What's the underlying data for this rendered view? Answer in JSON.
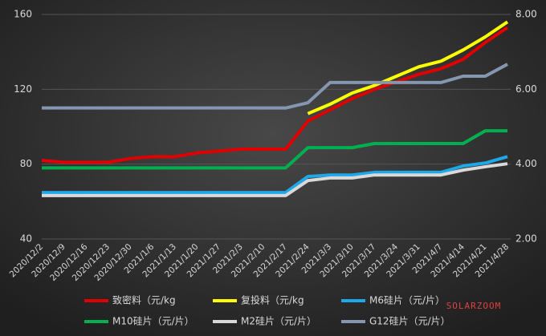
{
  "chart_data": {
    "type": "line",
    "categories": [
      "2020/12/2",
      "2020/12/9",
      "2020/12/16",
      "2020/12/23",
      "2020/12/30",
      "2021/1/6",
      "2021/1/13",
      "2021/1/20",
      "2021/1/27",
      "2021/2/3",
      "2021/2/10",
      "2021/2/17",
      "2021/2/24",
      "2021/3/3",
      "2021/3/10",
      "2021/3/17",
      "2021/3/24",
      "2021/3/31",
      "2021/4/7",
      "2021/4/14",
      "2021/4/21",
      "2021/4/28"
    ],
    "ylim": [
      40,
      160
    ],
    "yticks": [
      40,
      80,
      120,
      160
    ],
    "y2lim": [
      2,
      8
    ],
    "y2ticks": [
      {
        "value": 2,
        "label": "2.00"
      },
      {
        "value": 4,
        "label": "4.00"
      },
      {
        "value": 6,
        "label": "6.00"
      },
      {
        "value": 8,
        "label": "8.00"
      }
    ],
    "grid": true,
    "legend": "bottom",
    "watermark": "SOLARZOOM",
    "series": [
      {
        "name": "致密料（元/kg",
        "color": "#e00000",
        "values": [
          82,
          81,
          81,
          81,
          83,
          84,
          84,
          86,
          87,
          88,
          88,
          88,
          103,
          109,
          115,
          120,
          124,
          128,
          131,
          136,
          145,
          153
        ]
      },
      {
        "name": "复投料（元/kg",
        "color": "#ffff00",
        "values": [
          null,
          null,
          null,
          null,
          null,
          null,
          null,
          null,
          null,
          null,
          null,
          null,
          107,
          112,
          118,
          122,
          127,
          132,
          135,
          141,
          148,
          156
        ]
      },
      {
        "name": "M6硅片（元/片）",
        "color": "#1ea8e8",
        "axis": "y2",
        "values": [
          3.24,
          3.24,
          3.24,
          3.24,
          3.24,
          3.24,
          3.24,
          3.24,
          3.24,
          3.24,
          3.24,
          3.24,
          3.67,
          3.71,
          3.71,
          3.78,
          3.78,
          3.78,
          3.78,
          3.95,
          4.03,
          4.2
        ]
      },
      {
        "name": "M10硅片（元/片）",
        "color": "#00b050",
        "axis": "y2",
        "values": [
          3.9,
          3.9,
          3.9,
          3.9,
          3.9,
          3.9,
          3.9,
          3.9,
          3.9,
          3.9,
          3.9,
          3.9,
          4.44,
          4.44,
          4.44,
          4.55,
          4.55,
          4.55,
          4.55,
          4.55,
          4.89,
          4.89
        ]
      },
      {
        "name": "M2硅片（元/片）",
        "color": "#d9d9d9",
        "axis": "y2",
        "values": [
          3.16,
          3.16,
          3.16,
          3.16,
          3.16,
          3.16,
          3.16,
          3.16,
          3.16,
          3.16,
          3.16,
          3.16,
          3.56,
          3.63,
          3.63,
          3.71,
          3.71,
          3.71,
          3.71,
          3.84,
          3.93,
          4.01
        ]
      },
      {
        "name": "G12硅片（元/片）",
        "color": "#8496b0",
        "axis": "y2",
        "values": [
          5.5,
          5.5,
          5.5,
          5.5,
          5.5,
          5.5,
          5.5,
          5.5,
          5.5,
          5.5,
          5.5,
          5.5,
          5.64,
          6.18,
          6.18,
          6.18,
          6.18,
          6.18,
          6.18,
          6.35,
          6.35,
          6.67
        ]
      }
    ]
  }
}
